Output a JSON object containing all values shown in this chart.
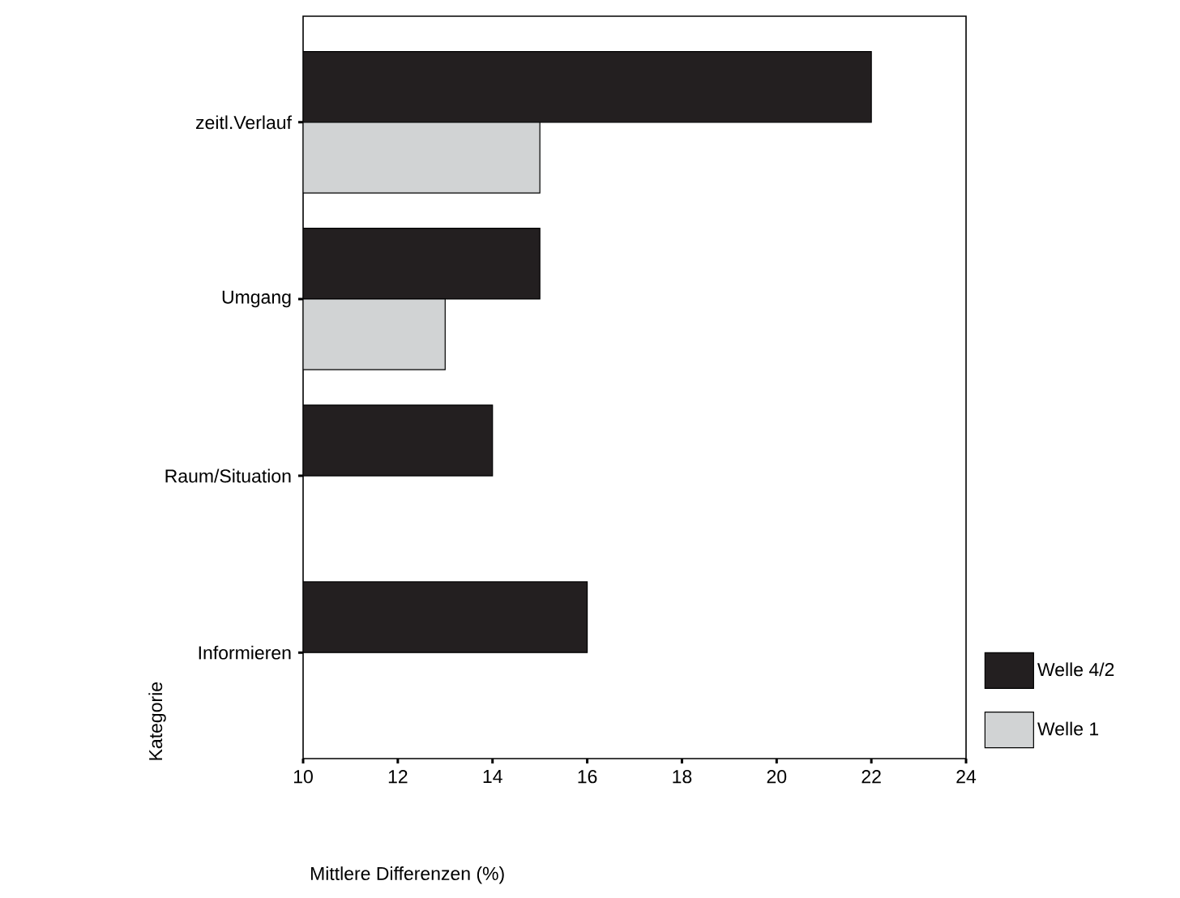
{
  "chart_data": {
    "type": "bar",
    "orientation": "horizontal",
    "xlabel": "Mittlere Differenzen (%)",
    "ylabel": "Kategorie",
    "categories": [
      "zeitl.Verlauf",
      "Umgang",
      "Raum/Situation",
      "Informieren"
    ],
    "series": [
      {
        "name": "Welle 4/2",
        "color": "#231f20",
        "values": [
          22,
          15,
          14,
          16
        ]
      },
      {
        "name": "Welle 1",
        "color": "#d1d3d4",
        "values": [
          15,
          13,
          null,
          null
        ]
      }
    ],
    "xlim": [
      10,
      24
    ],
    "xticks": [
      10,
      12,
      14,
      16,
      18,
      20,
      22,
      24
    ],
    "legend": "bottom right"
  }
}
